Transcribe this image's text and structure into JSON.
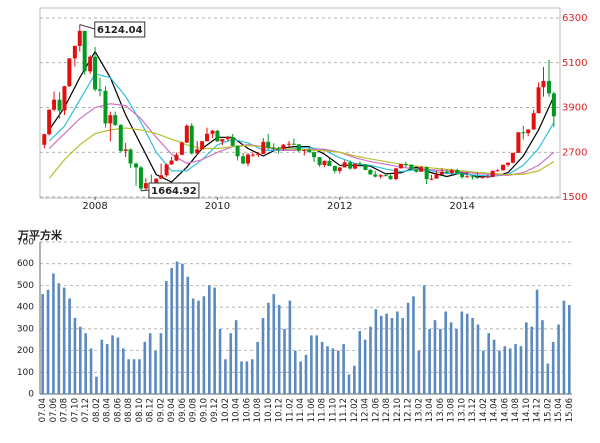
{
  "chart_data": [
    {
      "type": "candlestick",
      "x": [
        2007.17,
        2007.25,
        2007.33,
        2007.42,
        2007.5,
        2007.58,
        2007.67,
        2007.75,
        2007.83,
        2007.92,
        2008,
        2008.08,
        2008.17,
        2008.25,
        2008.33,
        2008.42,
        2008.5,
        2008.58,
        2008.67,
        2008.75,
        2008.83,
        2008.92,
        2009,
        2009.08,
        2009.17,
        2009.25,
        2009.33,
        2009.42,
        2009.5,
        2009.58,
        2009.67,
        2009.75,
        2009.83,
        2009.92,
        2010,
        2010.08,
        2010.17,
        2010.25,
        2010.33,
        2010.42,
        2010.5,
        2010.58,
        2010.67,
        2010.75,
        2010.83,
        2010.92,
        2011,
        2011.08,
        2011.17,
        2011.25,
        2011.33,
        2011.42,
        2011.5,
        2011.58,
        2011.67,
        2011.75,
        2011.83,
        2011.92,
        2012,
        2012.08,
        2012.17,
        2012.25,
        2012.33,
        2012.42,
        2012.5,
        2012.58,
        2012.67,
        2012.75,
        2012.83,
        2012.92,
        2013,
        2013.08,
        2013.17,
        2013.25,
        2013.33,
        2013.42,
        2013.5,
        2013.58,
        2013.67,
        2013.75,
        2013.83,
        2013.92,
        2014,
        2014.08,
        2014.17,
        2014.25,
        2014.33,
        2014.42,
        2014.5,
        2014.58,
        2014.67,
        2014.75,
        2014.83,
        2014.92,
        2015,
        2015.08,
        2015.17,
        2015.25,
        2015.33,
        2015.42,
        2015.5
      ],
      "open": [
        2900,
        3183,
        3841,
        4109,
        3820,
        4471,
        5218,
        5552,
        5954,
        4871,
        5262,
        4383,
        4348,
        3473,
        3693,
        3433,
        2736,
        2775,
        2397,
        2293,
        1729,
        1871,
        1821,
        1991,
        2082,
        2373,
        2477,
        2633,
        2959,
        3412,
        2667,
        2779,
        2996,
        3195,
        3277,
        2989,
        3051,
        3110,
        2871,
        2592,
        2398,
        2638,
        2639,
        2656,
        2979,
        2820,
        2808,
        2790,
        2905,
        2928,
        2911,
        2743,
        2762,
        2701,
        2568,
        2359,
        2468,
        2333,
        2199,
        2292,
        2428,
        2262,
        2396,
        2373,
        2225,
        2103,
        2047,
        2086,
        2069,
        1980,
        2269,
        2385,
        2365,
        2237,
        2178,
        2301,
        1979,
        1994,
        2098,
        2175,
        2142,
        2220,
        2116,
        2033,
        2056,
        2033,
        2026,
        2039,
        2048,
        2202,
        2217,
        2364,
        2420,
        2683,
        3235,
        3210,
        3310,
        3748,
        4442,
        4612,
        4277
      ],
      "high": [
        3200,
        3850,
        4330,
        4310,
        4480,
        5220,
        5560,
        6124,
        5950,
        5300,
        5520,
        4700,
        4470,
        3790,
        3790,
        3450,
        2950,
        2800,
        2420,
        2330,
        2000,
        2100,
        2000,
        2400,
        2400,
        2580,
        2690,
        2990,
        3450,
        3480,
        3000,
        3000,
        3360,
        3300,
        3300,
        3060,
        3140,
        3190,
        2880,
        2680,
        2680,
        2690,
        2700,
        3080,
        3190,
        2940,
        2850,
        2920,
        3000,
        3070,
        2920,
        2780,
        2830,
        2720,
        2570,
        2480,
        2540,
        2340,
        2300,
        2480,
        2480,
        2400,
        2450,
        2380,
        2250,
        2200,
        2110,
        2150,
        2100,
        2280,
        2390,
        2450,
        2380,
        2270,
        2330,
        2320,
        2090,
        2200,
        2270,
        2240,
        2260,
        2260,
        2120,
        2180,
        2080,
        2150,
        2060,
        2090,
        2210,
        2250,
        2370,
        2430,
        2690,
        3240,
        3410,
        3320,
        3840,
        4570,
        4990,
        5178,
        4320
      ],
      "low": [
        2800,
        3150,
        3800,
        3600,
        3700,
        4450,
        5000,
        5400,
        4780,
        4800,
        4330,
        4200,
        3360,
        2990,
        3400,
        2690,
        2570,
        2280,
        1800,
        1665,
        1680,
        1820,
        1810,
        1990,
        2040,
        2360,
        2460,
        2620,
        2950,
        2640,
        2640,
        2770,
        2990,
        3080,
        2980,
        2890,
        2990,
        2860,
        2480,
        2380,
        2320,
        2570,
        2570,
        2650,
        2770,
        2720,
        2660,
        2740,
        2840,
        2890,
        2700,
        2610,
        2690,
        2440,
        2310,
        2300,
        2330,
        2130,
        2130,
        2290,
        2240,
        2240,
        2310,
        2220,
        2100,
        2030,
        1990,
        2060,
        1960,
        1950,
        2260,
        2300,
        2230,
        2150,
        2170,
        1850,
        1950,
        1990,
        2090,
        2120,
        2080,
        2110,
        1990,
        2020,
        1970,
        1990,
        1990,
        2010,
        2040,
        2180,
        2210,
        2310,
        2400,
        2680,
        3040,
        3130,
        3300,
        3740,
        4190,
        4190,
        3370
      ],
      "close": [
        3183,
        3841,
        4109,
        3820,
        4471,
        5218,
        5552,
        5954,
        4871,
        5262,
        4383,
        4348,
        3473,
        3693,
        3433,
        2736,
        2775,
        2397,
        2293,
        1729,
        1871,
        1821,
        1991,
        2082,
        2373,
        2477,
        2633,
        2959,
        3412,
        2667,
        2779,
        2996,
        3195,
        3277,
        2989,
        3051,
        3110,
        2871,
        2592,
        2398,
        2638,
        2639,
        2656,
        2979,
        2820,
        2808,
        2790,
        2905,
        2928,
        2911,
        2743,
        2762,
        2701,
        2568,
        2359,
        2468,
        2333,
        2199,
        2292,
        2428,
        2262,
        2396,
        2373,
        2225,
        2103,
        2047,
        2086,
        2069,
        1980,
        2269,
        2385,
        2365,
        2237,
        2178,
        2301,
        1979,
        1994,
        2098,
        2175,
        2142,
        2220,
        2116,
        2033,
        2056,
        2033,
        2026,
        2039,
        2048,
        2202,
        2217,
        2364,
        2420,
        2683,
        3235,
        3210,
        3310,
        3748,
        4442,
        4612,
        4277,
        3664
      ],
      "up_color": "#e01010",
      "down_color": "#009a20",
      "lines": {
        "x": [
          2007.25,
          2007.5,
          2007.75,
          2008,
          2008.25,
          2008.5,
          2008.75,
          2009,
          2009.25,
          2009.5,
          2009.75,
          2010,
          2010.25,
          2010.5,
          2010.75,
          2011,
          2011.25,
          2011.5,
          2011.75,
          2012,
          2012.25,
          2012.5,
          2012.75,
          2013,
          2013.25,
          2013.5,
          2013.75,
          2014,
          2014.25,
          2014.5,
          2014.75,
          2015,
          2015.25,
          2015.5
        ],
        "series": [
          {
            "color": "#000000",
            "values": [
              3300,
              3900,
              4700,
              5400,
              4700,
              3700,
              2900,
              2100,
              1900,
              2300,
              2800,
              3100,
              3100,
              2800,
              2600,
              2800,
              2850,
              2850,
              2650,
              2350,
              2350,
              2330,
              2120,
              2150,
              2300,
              2150,
              2050,
              2150,
              2050,
              2050,
              2150,
              2600,
              3300,
              4200
            ]
          },
          {
            "color": "#30c0e0",
            "values": [
              3000,
              3400,
              4100,
              4800,
              4700,
              4200,
              3500,
              2700,
              2200,
              2200,
              2500,
              2900,
              3050,
              2950,
              2750,
              2750,
              2800,
              2830,
              2750,
              2550,
              2400,
              2350,
              2250,
              2180,
              2230,
              2200,
              2130,
              2120,
              2080,
              2060,
              2100,
              2350,
              2800,
              3500
            ]
          },
          {
            "color": "#d070c8",
            "values": [
              2800,
              3200,
              3600,
              3900,
              4000,
              3950,
              3600,
              3100,
              2650,
              2400,
              2500,
              2700,
              2850,
              2900,
              2850,
              2750,
              2750,
              2780,
              2780,
              2700,
              2550,
              2450,
              2380,
              2300,
              2250,
              2230,
              2200,
              2170,
              2130,
              2100,
              2080,
              2150,
              2350,
              2700
            ]
          },
          {
            "color": "#b8c030",
            "values": [
              2000,
              2500,
              2900,
              3200,
              3300,
              3350,
              3300,
              3200,
              3050,
              2900,
              2800,
              2800,
              2850,
              2880,
              2850,
              2800,
              2780,
              2760,
              2740,
              2700,
              2600,
              2520,
              2450,
              2380,
              2330,
              2280,
              2240,
              2200,
              2160,
              2130,
              2100,
              2110,
              2200,
              2450
            ]
          }
        ]
      },
      "xlim": [
        2007.1,
        2015.6
      ],
      "xticks": [
        2008,
        2010,
        2012,
        2014
      ],
      "ylim": [
        1500,
        6300
      ],
      "yticks": [
        1500,
        2700,
        3900,
        5100,
        6300
      ],
      "grid": true,
      "annotations": [
        {
          "text": "6124.04",
          "x": 2007.75,
          "y": 6124
        },
        {
          "text": "1664.92",
          "x": 2008.75,
          "y": 1665
        }
      ]
    },
    {
      "type": "bar",
      "y_label": "万平方米",
      "color": "#5a8ac0",
      "categories": [
        "07.04",
        null,
        "07.06",
        null,
        "07.08",
        null,
        "07.10",
        null,
        "07.12",
        null,
        "08.02",
        null,
        "08.04",
        null,
        "08.06",
        null,
        "08.08",
        null,
        "08.10",
        null,
        "08.12",
        null,
        "09.02",
        null,
        "09.04",
        null,
        "09.06",
        null,
        "09.08",
        null,
        "09.10",
        null,
        "09.12",
        null,
        "10.02",
        null,
        "10.04",
        null,
        "10.06",
        null,
        "10.08",
        null,
        "10.10",
        null,
        "10.12",
        null,
        "11.02",
        null,
        "11.04",
        null,
        "11.06",
        null,
        "11.08",
        null,
        "11.10",
        null,
        "11.12",
        null,
        "12.02",
        null,
        "12.04",
        null,
        "12.06",
        null,
        "12.08",
        null,
        "12.10",
        null,
        "12.12",
        null,
        "13.02",
        null,
        "13.04",
        null,
        "13.06",
        null,
        "13.08",
        null,
        "13.10",
        null,
        "13.12",
        null,
        "14.02",
        null,
        "14.04",
        null,
        "14.06",
        null,
        "14.08",
        null,
        "14.10",
        null,
        "14.12",
        null,
        "15.02",
        null,
        "15.04",
        null,
        "15.06"
      ],
      "values": [
        460,
        480,
        555,
        510,
        490,
        440,
        350,
        310,
        280,
        210,
        80,
        250,
        230,
        270,
        260,
        210,
        160,
        160,
        160,
        240,
        280,
        200,
        280,
        520,
        580,
        610,
        600,
        540,
        440,
        430,
        450,
        500,
        490,
        300,
        160,
        280,
        340,
        150,
        150,
        160,
        240,
        350,
        420,
        460,
        410,
        300,
        430,
        200,
        150,
        180,
        270,
        270,
        240,
        220,
        210,
        200,
        230,
        90,
        130,
        290,
        250,
        310,
        390,
        360,
        370,
        350,
        380,
        350,
        420,
        450,
        200,
        500,
        300,
        340,
        300,
        380,
        330,
        300,
        380,
        370,
        350,
        320,
        200,
        280,
        250,
        200,
        220,
        210,
        230,
        220,
        330,
        310,
        480,
        340,
        140,
        240,
        320,
        430,
        410
      ],
      "ylim": [
        0,
        700
      ],
      "yticks": [
        0,
        100,
        200,
        300,
        400,
        500,
        600,
        700
      ],
      "grid": true
    }
  ]
}
